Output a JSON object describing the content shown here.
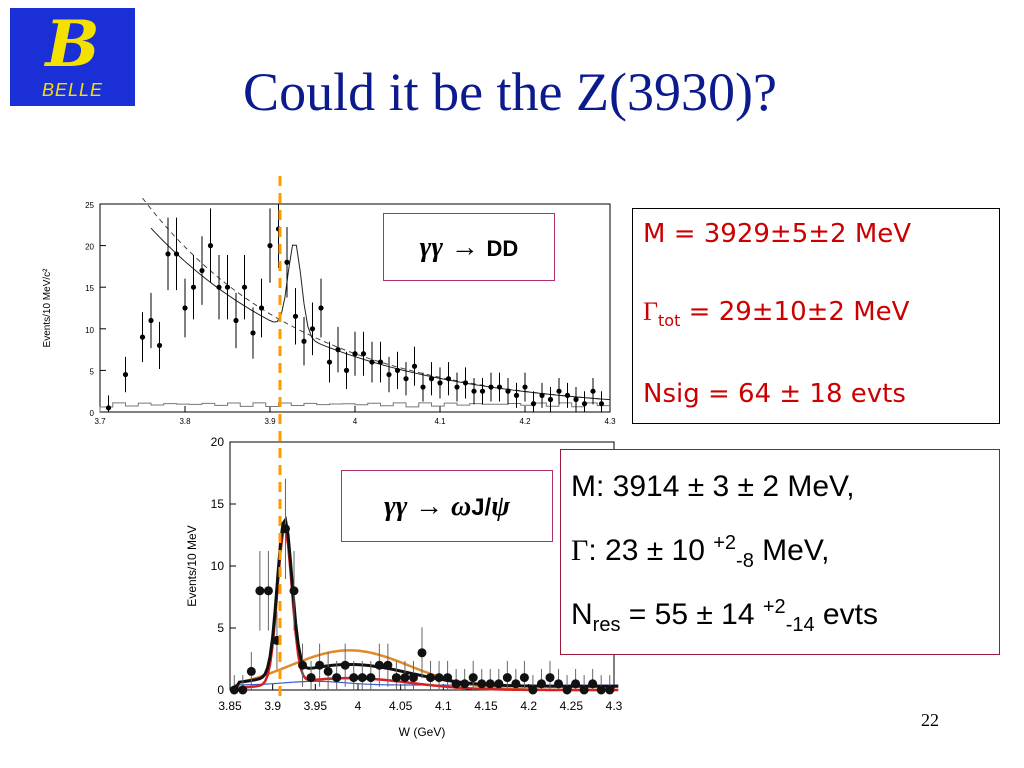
{
  "logo": {
    "letter": "B",
    "text": "BELLE"
  },
  "title": "Could it be the Z(3930)?",
  "page_number": "22",
  "colors": {
    "title": "#0b1a8c",
    "logo_bg": "#1a2fd6",
    "logo_fg": "#f5e100",
    "dashed_line": "#ff9900",
    "red_text": "#cc0000"
  },
  "labels": {
    "dd": {
      "gamma": "γγ",
      "arrow": "→",
      "product": "DD"
    },
    "wj": {
      "gamma": "γγ",
      "arrow": "→",
      "omega": "ω",
      "product": "J/",
      "psi": "ψ"
    }
  },
  "results_top": {
    "mass": "M = 3929±5±2 MeV",
    "gamma_sym": "Γ",
    "gamma_sub": "tot",
    "gamma_val": " = 29±10±2 MeV",
    "nsig": "Nsig = 64 ± 18 evts"
  },
  "results_bottom": {
    "mass": "M: 3914 ± 3 ± 2 MeV,",
    "gamma_sym": "Γ",
    "gamma_val": ": 23 ± 10 ",
    "gamma_sup": "+2",
    "gamma_sub": "-8",
    "gamma_unit": " MeV,",
    "n_main": "N",
    "n_sub": "res",
    "n_val": " = 55 ± 14 ",
    "n_sup": "+2",
    "n_sub2": "-14",
    "n_unit": " evts"
  },
  "chart_data": [
    {
      "type": "scatter",
      "title": "",
      "xlabel": "",
      "ylabel": "Events/10 MeV/c²",
      "xlim": [
        3.7,
        4.3
      ],
      "ylim": [
        0,
        25
      ],
      "x_ticks": [
        "3.7",
        "3.8",
        "3.9",
        "4",
        "4.1",
        "4.2",
        "4.3"
      ],
      "y_ticks": [
        "0",
        "5",
        "10",
        "15",
        "20",
        "25"
      ],
      "series": [
        {
          "x": [
            3.71,
            3.73,
            3.75,
            3.76,
            3.77,
            3.78,
            3.79,
            3.8,
            3.81,
            3.82,
            3.83,
            3.84,
            3.85,
            3.86,
            3.87,
            3.88,
            3.89,
            3.9,
            3.91,
            3.92,
            3.93,
            3.94,
            3.95,
            3.96,
            3.97,
            3.98,
            3.99,
            4.0,
            4.01,
            4.02,
            4.03,
            4.04,
            4.05,
            4.06,
            4.07,
            4.08,
            4.09,
            4.1,
            4.11,
            4.12,
            4.13,
            4.14,
            4.15,
            4.16,
            4.17,
            4.18,
            4.19,
            4.2,
            4.21,
            4.22,
            4.23,
            4.24,
            4.25,
            4.26,
            4.27,
            4.28,
            4.29
          ],
          "y": [
            0.5,
            4.5,
            9,
            11,
            8,
            19,
            19,
            12.5,
            15,
            17,
            20,
            15,
            15,
            11,
            15,
            9.5,
            12.5,
            20,
            22,
            18,
            11.5,
            8.5,
            10,
            12.5,
            6,
            7.5,
            5,
            7,
            7,
            6,
            6,
            4.5,
            5,
            4,
            5.5,
            3,
            4,
            3.5,
            4,
            3,
            3.5,
            2.5,
            2.5,
            3,
            3,
            2.5,
            2,
            3,
            1,
            2,
            1.5,
            2.5,
            2,
            1.5,
            1,
            2.5,
            1
          ]
        }
      ]
    },
    {
      "type": "scatter",
      "title": "",
      "xlabel": "W (GeV)",
      "ylabel": "Events/10 MeV",
      "xlim": [
        3.85,
        4.3
      ],
      "ylim": [
        0,
        20
      ],
      "x_ticks": [
        "3.85",
        "3.9",
        "3.95",
        "4",
        "4.05",
        "4.1",
        "4.15",
        "4.2",
        "4.25",
        "4.3"
      ],
      "y_ticks": [
        "0",
        "5",
        "10",
        "15",
        "20"
      ],
      "series": [
        {
          "x": [
            3.855,
            3.865,
            3.875,
            3.885,
            3.895,
            3.905,
            3.915,
            3.925,
            3.935,
            3.945,
            3.955,
            3.965,
            3.975,
            3.985,
            3.995,
            4.005,
            4.015,
            4.025,
            4.035,
            4.045,
            4.055,
            4.065,
            4.075,
            4.085,
            4.095,
            4.105,
            4.115,
            4.125,
            4.135,
            4.145,
            4.155,
            4.165,
            4.175,
            4.185,
            4.195,
            4.205,
            4.215,
            4.225,
            4.235,
            4.245,
            4.255,
            4.265,
            4.275,
            4.285,
            4.295
          ],
          "y": [
            0,
            0,
            1.5,
            8,
            8,
            4,
            13,
            8,
            2,
            1,
            2,
            1.5,
            1,
            2,
            1,
            1,
            1,
            2,
            2,
            1,
            1,
            1,
            3,
            1,
            1,
            1,
            0.5,
            0.5,
            1,
            0.5,
            0.5,
            0.5,
            1,
            0.5,
            1,
            0,
            0.5,
            1,
            0.5,
            0,
            0.5,
            0,
            0.5,
            0,
            0
          ]
        }
      ]
    }
  ]
}
